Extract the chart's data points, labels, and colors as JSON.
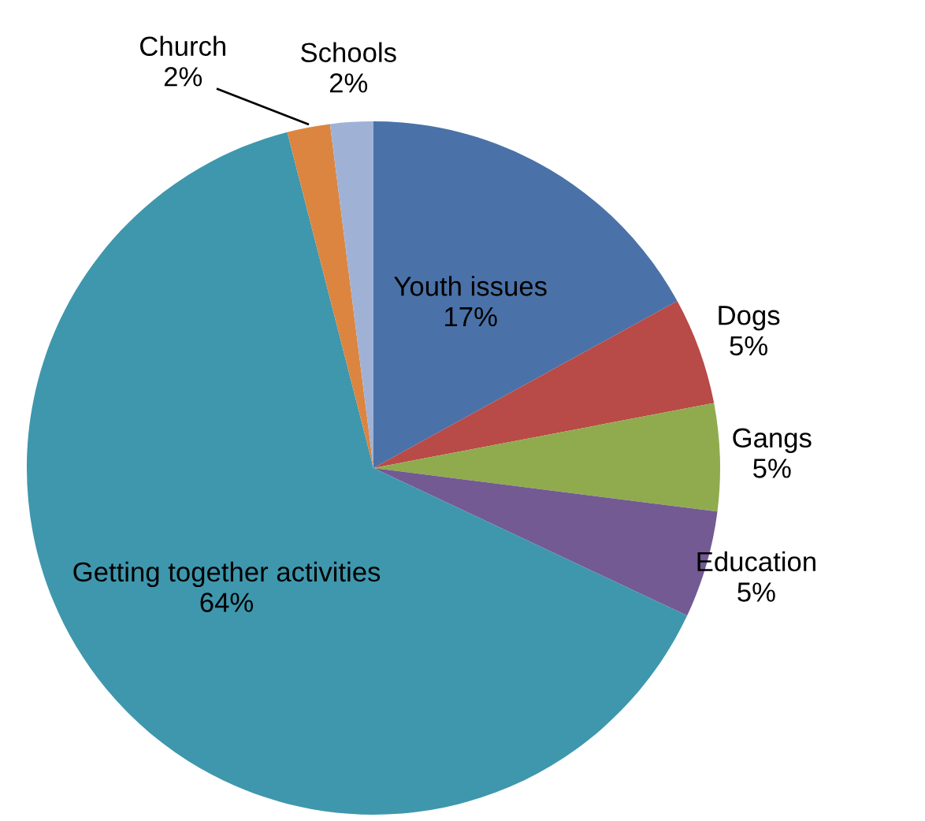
{
  "chart_data": {
    "type": "pie",
    "categories": [
      "Youth issues",
      "Dogs",
      "Gangs",
      "Education",
      "Getting together activities",
      "Church",
      "Schools"
    ],
    "values": [
      17,
      5,
      5,
      5,
      64,
      2,
      2
    ],
    "colors": [
      "#4a72a8",
      "#b84a47",
      "#8fab4e",
      "#735a93",
      "#3e97ad",
      "#dc8540",
      "#9fb2d6"
    ],
    "value_labels": [
      "17%",
      "5%",
      "5%",
      "5%",
      "64%",
      "2%",
      "2%"
    ]
  }
}
